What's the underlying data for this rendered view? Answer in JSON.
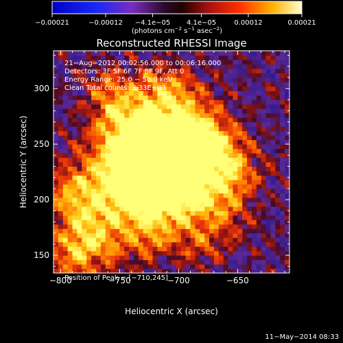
{
  "chart_data": {
    "type": "heatmap",
    "title": "Reconstructed RHESSI Image",
    "xlabel": "Heliocentric X (arcsec)",
    "ylabel": "Heliocentric Y (arcsec)",
    "xlim": [
      -806,
      -606
    ],
    "ylim": [
      134,
      334
    ],
    "x_ticks": [
      -800,
      -750,
      -700,
      -650
    ],
    "y_ticks": [
      150,
      200,
      250,
      300
    ],
    "x_tick_labels": [
      "−800",
      "−750",
      "−700",
      "−650"
    ],
    "y_tick_labels": [
      "150",
      "200",
      "250",
      "300"
    ],
    "colorbar": {
      "range": [
        -0.00021,
        0.00021
      ],
      "tick_labels": [
        "−0.00021",
        "−0.00012",
        "−4.1e−05",
        "4.1e−05",
        "0.00012",
        "0.00021"
      ],
      "units_prefix": "(photons cm",
      "units_exp1": "−2",
      "units_mid": " s",
      "units_exp2": "−1",
      "units_mid2": " asec",
      "units_exp3": "−2",
      "units_suffix": ")"
    },
    "peak": [
      -710,
      245
    ],
    "colors": {
      "negative": "#5a2aa6",
      "low": "#7a2a7a",
      "mid": "#e83a10",
      "high": "#ff9a00",
      "peak": "#ffff70"
    }
  },
  "annotations": {
    "line1": "21−Aug−2012 00:02:56.000 to 00:06:16.000",
    "line2": "Detectors: 3F 5F 6F 7F 8F 9F, Att 0",
    "line3": "Energy Range: 25.0 − 50.0 keV",
    "line4": "Clean     Total counts: 3.33E+03",
    "peak_label": "Position of Peak = [−710,245]"
  },
  "footer": {
    "date": "11−May−2014 08:33"
  }
}
